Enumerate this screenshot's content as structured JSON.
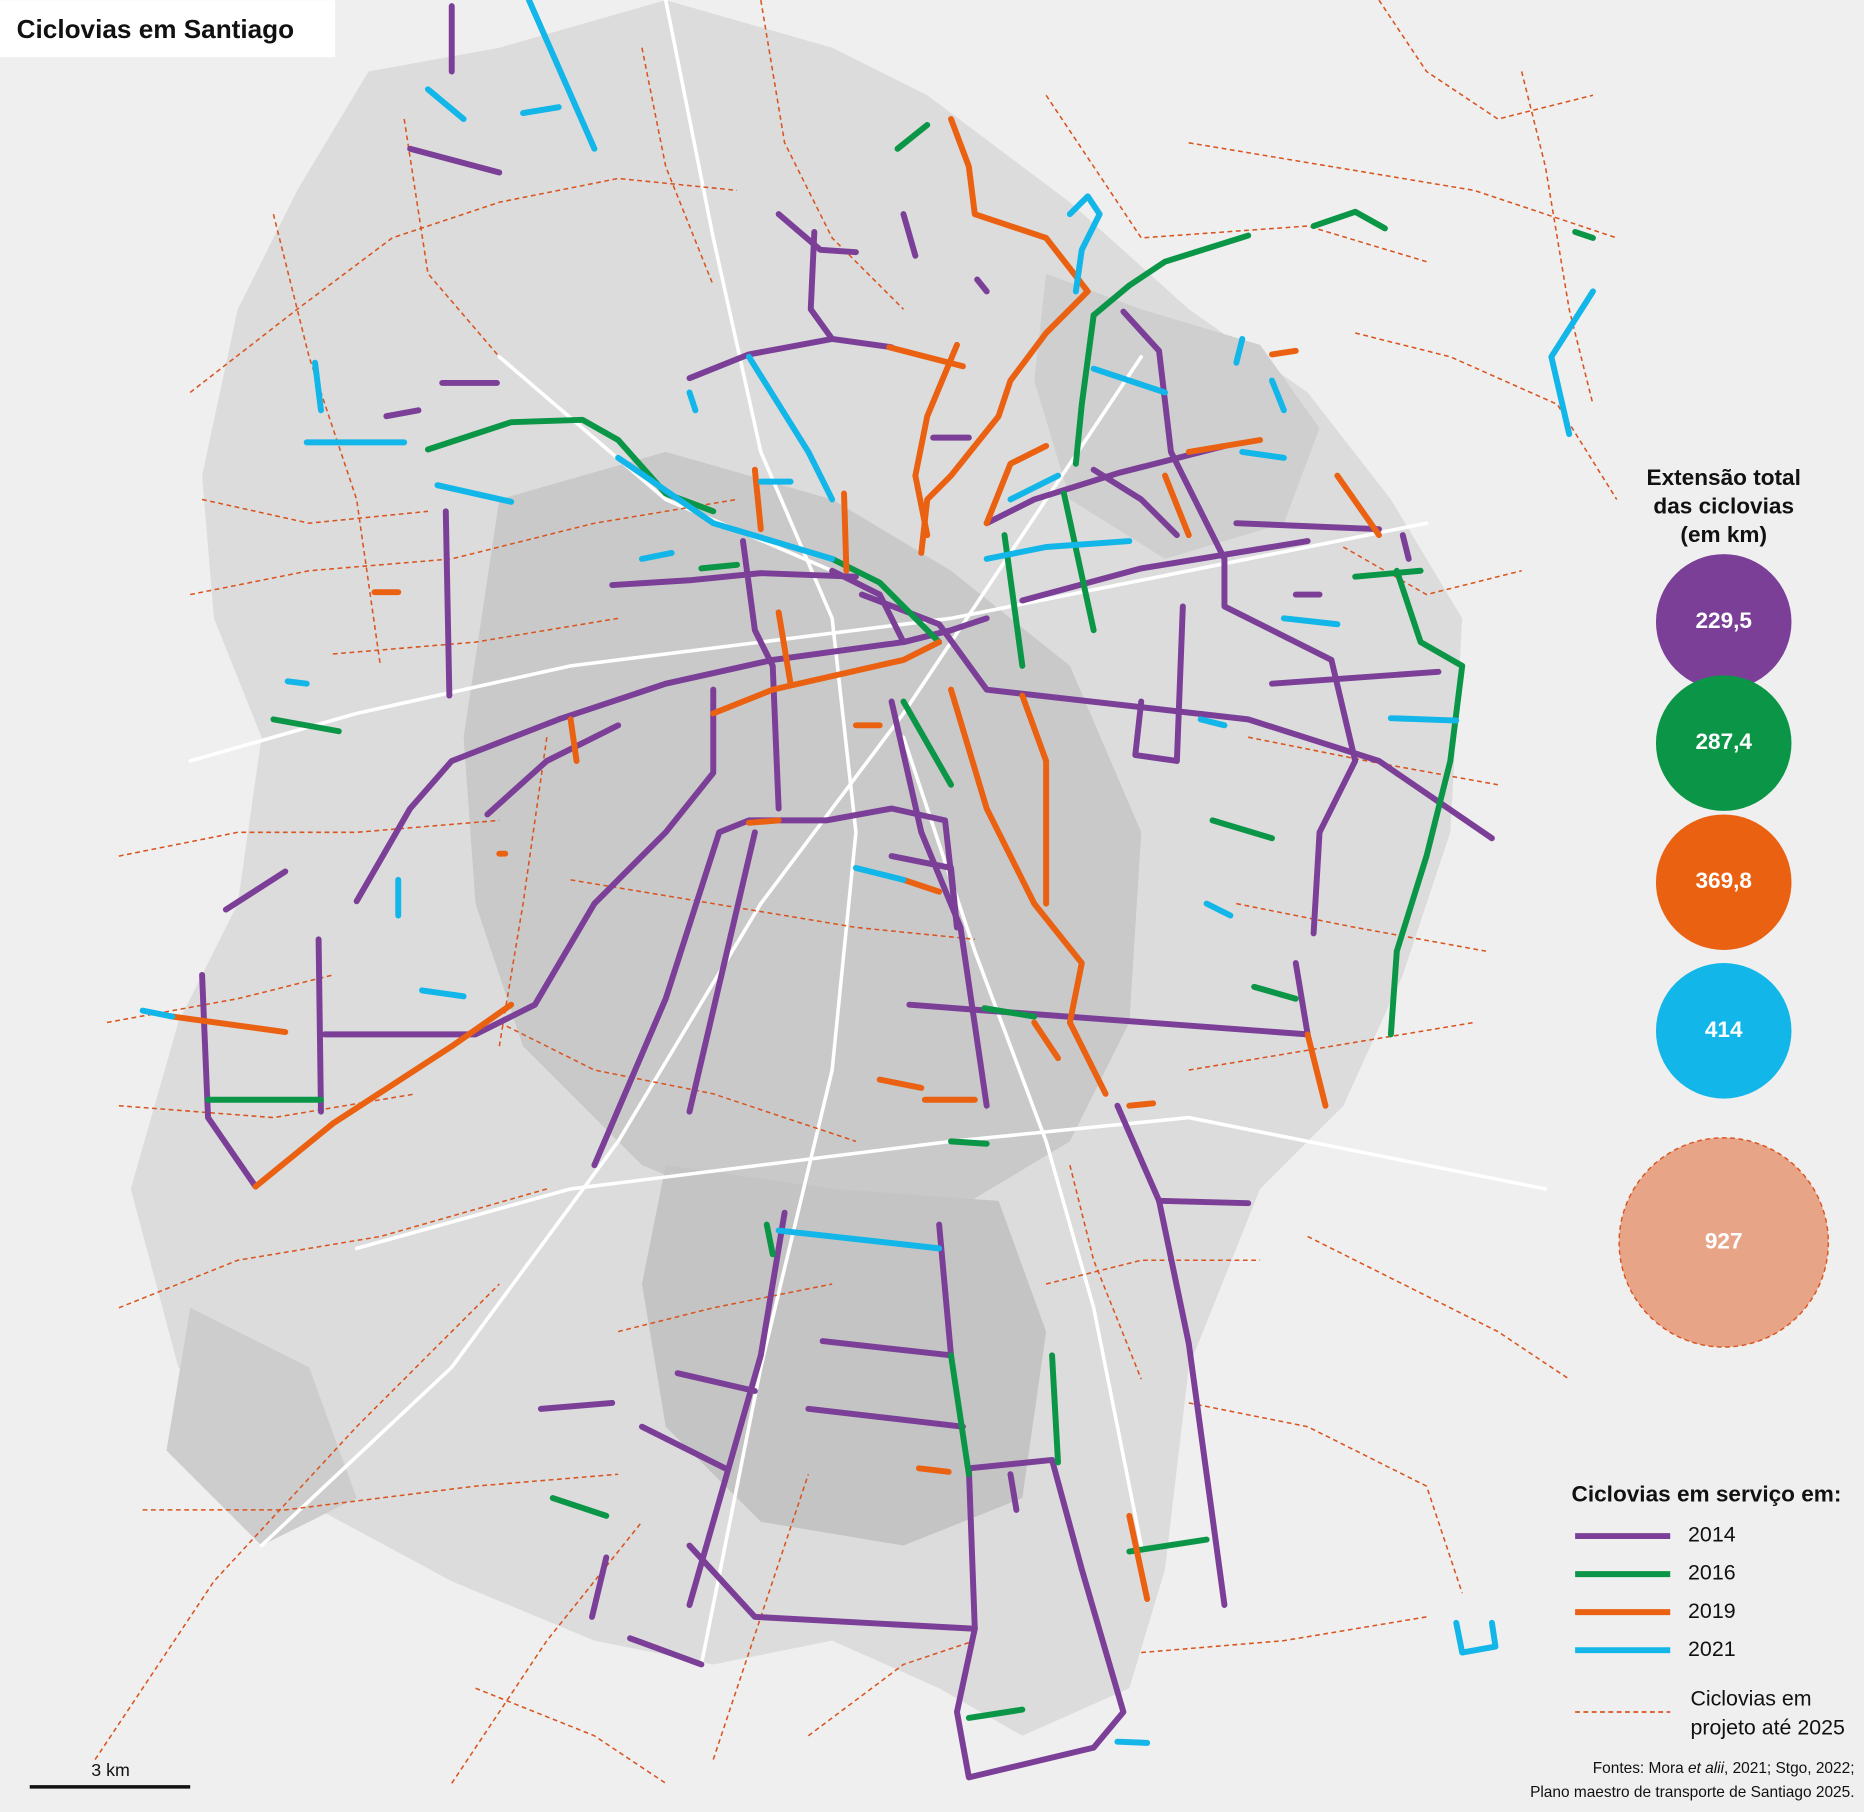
{
  "title": "Ciclovias em Santiago",
  "totals": {
    "title": [
      "Extensão total",
      "das ciclovias",
      "(em km)"
    ],
    "items": [
      {
        "label": "229,5",
        "color": "#7b3f98"
      },
      {
        "label": "287,4",
        "color": "#0b9647"
      },
      {
        "label": "369,8",
        "color": "#ea6112"
      },
      {
        "label": "414",
        "color": "#12b6e8"
      },
      {
        "label": "927",
        "color": "#e8a487"
      }
    ]
  },
  "legend": {
    "title": "Ciclovias em serviço em:",
    "items": [
      {
        "label": "2014",
        "color": "#7b3f98"
      },
      {
        "label": "2016",
        "color": "#0b9647"
      },
      {
        "label": "2019",
        "color": "#ea6112"
      },
      {
        "label": "2021",
        "color": "#12b6e8"
      }
    ],
    "project": {
      "label": [
        "Ciclovias em",
        "projeto até 2025"
      ],
      "color": "#d9541f"
    }
  },
  "scale": "3 km",
  "sources": [
    [
      "Fontes: Mora ",
      "et alii",
      ", 2021; Stgo, 2022;"
    ],
    "Plano maestro de transporte de Santiago 2025."
  ]
}
